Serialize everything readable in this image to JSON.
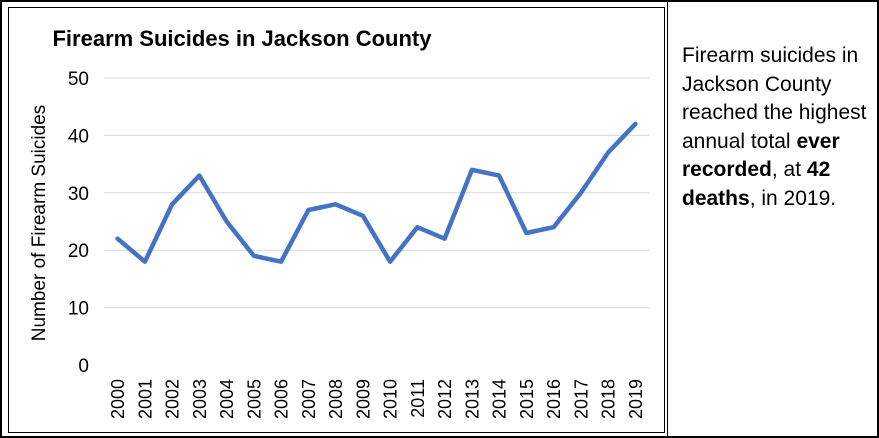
{
  "chart_data": {
    "type": "line",
    "title": "Firearm Suicides in Jackson County",
    "xlabel": "",
    "ylabel": "Number of Firearm Suicides",
    "categories": [
      "2000",
      "2001",
      "2002",
      "2003",
      "2004",
      "2005",
      "2006",
      "2007",
      "2008",
      "2009",
      "2010",
      "2011",
      "2012",
      "2013",
      "2014",
      "2015",
      "2016",
      "2017",
      "2018",
      "2019"
    ],
    "series": [
      {
        "values": [
          22,
          18,
          28,
          33,
          25,
          19,
          18,
          27,
          28,
          26,
          18,
          24,
          22,
          34,
          33,
          23,
          24,
          30,
          37,
          42
        ]
      }
    ],
    "ylim": [
      0,
      50
    ],
    "yticks": [
      0,
      10,
      20,
      30,
      40,
      50
    ],
    "grid": true,
    "legend": "none",
    "colors": {
      "line": "#4472C4",
      "grid": "#D9D9D9",
      "text": "#000000"
    }
  },
  "note": {
    "t1": "Firearm suicides in Jackson County reached the highest annual total ",
    "b1": "ever recorded",
    "t2": ", at ",
    "b2": "42 deaths",
    "t3": ", in 2019."
  }
}
